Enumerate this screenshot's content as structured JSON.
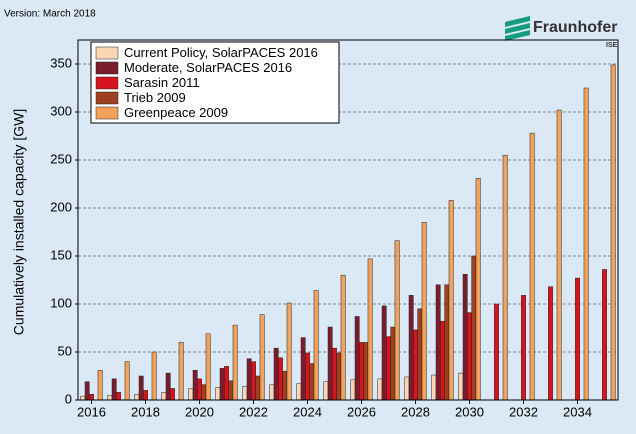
{
  "header": {
    "version": "Version: March 2018",
    "logo": "Fraunhofer",
    "logo_sub": "ISE"
  },
  "chart_data": {
    "type": "bar",
    "ylabel": "Cumulatively installed capacity [GW]",
    "categories": [
      "2016",
      null,
      "2018",
      null,
      "2020",
      null,
      "2022",
      null,
      "2024",
      null,
      "2026",
      null,
      "2028",
      null,
      "2030",
      null,
      "2032",
      null,
      "2034",
      null
    ],
    "series": [
      {
        "name": "Current Policy, SolarPACES 2016",
        "color": "#fcd5b4",
        "values": [
          4,
          5,
          6,
          8,
          12,
          13,
          14,
          16,
          17,
          19,
          21,
          22,
          24,
          26,
          28,
          null,
          null,
          null,
          null,
          null
        ]
      },
      {
        "name": "Moderate, SolarPACES 2016",
        "color": "#7b1c2e",
        "values": [
          19,
          22,
          25,
          28,
          31,
          33,
          43,
          54,
          65,
          76,
          87,
          98,
          109,
          120,
          131,
          null,
          null,
          null,
          null,
          null
        ]
      },
      {
        "name": "Sarasin 2011",
        "color": "#d7141e",
        "values": [
          6,
          8,
          10,
          12,
          22,
          35,
          40,
          44,
          49,
          54,
          60,
          66,
          73,
          82,
          91,
          100,
          109,
          118,
          127,
          136
        ]
      },
      {
        "name": "Trieb 2009",
        "color": "#a0401e",
        "values": [
          null,
          null,
          null,
          null,
          16,
          20,
          25,
          30,
          38,
          49,
          60,
          76,
          95,
          120,
          150,
          null,
          null,
          null,
          null,
          null
        ]
      },
      {
        "name": "Greenpeace 2009",
        "color": "#f4a15a",
        "values": [
          31,
          40,
          50,
          60,
          69,
          78,
          89,
          101,
          114,
          130,
          147,
          166,
          185,
          208,
          231,
          255,
          278,
          302,
          325,
          349
        ]
      }
    ],
    "ylim": [
      0,
      375
    ],
    "yticks": [
      0,
      50,
      100,
      150,
      200,
      250,
      300,
      350
    ],
    "grid": true,
    "legend": "top-left"
  }
}
